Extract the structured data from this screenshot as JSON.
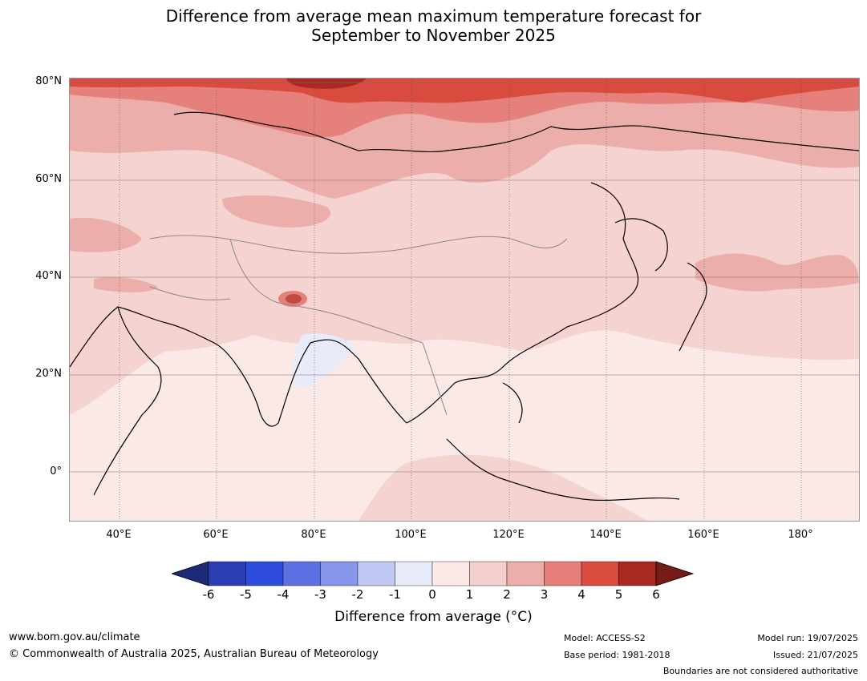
{
  "title_line1": "Difference from average mean maximum temperature forecast for",
  "title_line2": "September to November 2025",
  "lat_labels": [
    "80°N",
    "60°N",
    "40°N",
    "20°N",
    "0°"
  ],
  "lon_labels": [
    "40°E",
    "60°E",
    "80°E",
    "100°E",
    "120°E",
    "140°E",
    "160°E",
    "180°"
  ],
  "colorbar": {
    "ticks": [
      "-6",
      "-5",
      "-4",
      "-3",
      "-2",
      "-1",
      "0",
      "1",
      "2",
      "3",
      "4",
      "5",
      "6"
    ],
    "colors": [
      "#1c2a78",
      "#2a3db3",
      "#2e4ddf",
      "#5d70e3",
      "#8797eb",
      "#c0c8f4",
      "#e8ebfa",
      "#fbe9e7",
      "#f4d0cd",
      "#ecaeab",
      "#e5807a",
      "#d94a3f",
      "#a82a22",
      "#761c16"
    ],
    "title": "Difference from average (°C)"
  },
  "footer": {
    "website": "www.bom.gov.au/climate",
    "copyright": "© Commonwealth of Australia 2025, Australian Bureau of Meteorology",
    "model": "Model: ACCESS-S2",
    "base_period": "Base period: 1981-2018",
    "model_run": "Model run: 19/07/2025",
    "issued": "Issued: 21/07/2025",
    "disclaimer": "Boundaries are not considered authoritative"
  }
}
